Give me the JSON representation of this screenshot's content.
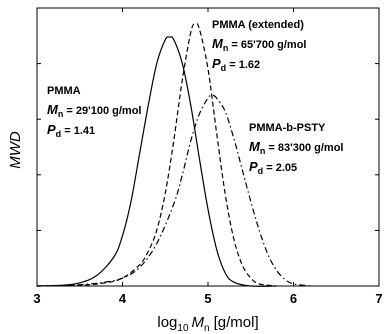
{
  "chart_data": {
    "type": "line",
    "xlabel": "log10 Mn [g/mol]",
    "xlabel_parts": {
      "base": "log",
      "sub": "10",
      "var": "M",
      "var_sub": "n",
      "unit": "[g/mol]"
    },
    "ylabel": "MWD",
    "xlim": [
      3,
      7
    ],
    "ylim": [
      0,
      1.05
    ],
    "xticks": [
      "3",
      "4",
      "5",
      "6",
      "7"
    ],
    "ytick_count": 4,
    "grid": false,
    "series": [
      {
        "style": "solid",
        "x": [
          3.0,
          3.3,
          3.5,
          3.7,
          3.9,
          4.0,
          4.1,
          4.2,
          4.3,
          4.4,
          4.5,
          4.55,
          4.6,
          4.7,
          4.8,
          4.9,
          5.0,
          5.1,
          5.2,
          5.3,
          5.5,
          5.8
        ],
        "y": [
          0.0,
          0.003,
          0.012,
          0.04,
          0.11,
          0.19,
          0.32,
          0.5,
          0.68,
          0.84,
          0.93,
          0.94,
          0.93,
          0.84,
          0.68,
          0.48,
          0.29,
          0.14,
          0.05,
          0.015,
          0.0,
          0.0
        ]
      },
      {
        "style": "dashed",
        "x": [
          3.0,
          3.5,
          3.8,
          4.0,
          4.2,
          4.3,
          4.4,
          4.5,
          4.6,
          4.7,
          4.8,
          4.85,
          4.9,
          5.0,
          5.1,
          5.2,
          5.3,
          5.4,
          5.5,
          5.6,
          5.8
        ],
        "y": [
          0.0,
          0.003,
          0.012,
          0.03,
          0.08,
          0.13,
          0.21,
          0.35,
          0.55,
          0.78,
          0.96,
          0.99,
          0.97,
          0.82,
          0.58,
          0.35,
          0.18,
          0.08,
          0.03,
          0.008,
          0.0
        ]
      },
      {
        "style": "dashdot",
        "x": [
          3.0,
          3.5,
          3.8,
          4.0,
          4.2,
          4.4,
          4.6,
          4.7,
          4.8,
          4.9,
          5.0,
          5.05,
          5.1,
          5.2,
          5.3,
          5.4,
          5.5,
          5.6,
          5.7,
          5.8,
          5.9,
          6.0,
          6.2
        ],
        "y": [
          0.0,
          0.005,
          0.015,
          0.03,
          0.07,
          0.16,
          0.31,
          0.42,
          0.55,
          0.65,
          0.71,
          0.72,
          0.71,
          0.66,
          0.56,
          0.44,
          0.32,
          0.21,
          0.12,
          0.06,
          0.025,
          0.008,
          0.0
        ]
      }
    ],
    "annotations": [
      {
        "id": "pmma",
        "title": "PMMA",
        "mn_var": "M",
        "mn_sub": "n",
        "mn_value": " = 29'100 g/mol",
        "pd_var": "P",
        "pd_sub": "d",
        "pd_value": " = 1.41"
      },
      {
        "id": "pmma-ext",
        "title": "PMMA (extended)",
        "mn_var": "M",
        "mn_sub": "n",
        "mn_value": " = 65'700 g/mol",
        "pd_var": "P",
        "pd_sub": "d",
        "pd_value": " = 1.62"
      },
      {
        "id": "pmma-b-psty",
        "title": "PMMA-b-PSTY",
        "mn_var": "M",
        "mn_sub": "n",
        "mn_value": " = 83'300 g/mol",
        "pd_var": "P",
        "pd_sub": "d",
        "pd_value": " = 2.05"
      }
    ]
  }
}
